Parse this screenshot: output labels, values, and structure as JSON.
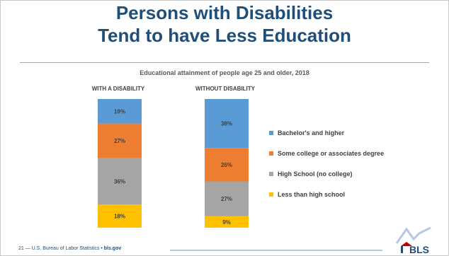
{
  "slide": {
    "title_line1": "Persons with Disabilities",
    "title_line2": "Tend to have Less Education",
    "page_number": "21",
    "footer_text": " — U.S. Bureau of Labor Statistics • ",
    "footer_link": "bls.gov",
    "logo_text": "BLS"
  },
  "chart_data": {
    "type": "stacked-bar",
    "title": "Educational attainment of people age 25 and older, 2018",
    "categories": [
      "WITH A DISABILITY",
      "WITHOUT DISABILITY"
    ],
    "series": [
      {
        "name": "Less than high school",
        "values": [
          18,
          9
        ],
        "labels": [
          "18%",
          "9%"
        ],
        "color": "#ffc000"
      },
      {
        "name": "High School (no college)",
        "values": [
          36,
          27
        ],
        "labels": [
          "36%",
          "27%"
        ],
        "color": "#a5a5a5"
      },
      {
        "name": "Some college or associates degree",
        "values": [
          27,
          26
        ],
        "labels": [
          "27%",
          "26%"
        ],
        "color": "#ed7d31"
      },
      {
        "name": "Bachelor's and higher",
        "values": [
          19,
          38
        ],
        "labels": [
          "19%",
          "38%"
        ],
        "color": "#5b9bd5"
      }
    ],
    "legend_order": [
      "Bachelor's and higher",
      "Some college or associates degree",
      "High School (no college)",
      "Less than high school"
    ],
    "legend_position": "right",
    "ylim": [
      0,
      100
    ],
    "grid": false
  }
}
